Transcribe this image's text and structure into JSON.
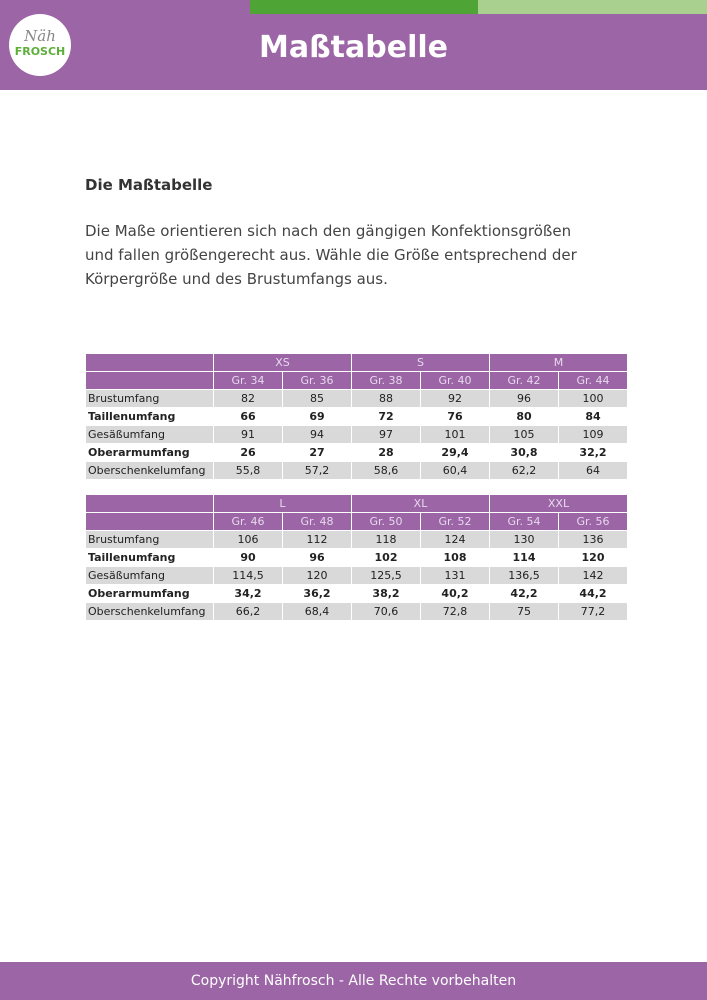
{
  "header": {
    "logo": {
      "line1": "Näh",
      "line2": "FROSCH"
    },
    "title": "Maßtabelle"
  },
  "content": {
    "heading": "Die Maßtabelle",
    "paragraph": [
      "Die Maße orientieren sich nach den gängigen Konfektionsgrößen",
      "und fallen größengerecht aus. Wähle die Größe entsprechend der",
      "Körpergröße und des Brustumfangs aus."
    ]
  },
  "tables": [
    {
      "groups": [
        "XS",
        "S",
        "M"
      ],
      "sizes": [
        "Gr. 34",
        "Gr. 36",
        "Gr. 38",
        "Gr. 40",
        "Gr. 42",
        "Gr. 44"
      ],
      "rows": [
        {
          "label": "Brustumfang",
          "values": [
            "82",
            "85",
            "88",
            "92",
            "96",
            "100"
          ]
        },
        {
          "label": "Taillenumfang",
          "values": [
            "66",
            "69",
            "72",
            "76",
            "80",
            "84"
          ]
        },
        {
          "label": "Gesäßumfang",
          "values": [
            "91",
            "94",
            "97",
            "101",
            "105",
            "109"
          ]
        },
        {
          "label": "Oberarmumfang",
          "values": [
            "26",
            "27",
            "28",
            "29,4",
            "30,8",
            "32,2"
          ]
        },
        {
          "label": "Oberschenkelumfang",
          "values": [
            "55,8",
            "57,2",
            "58,6",
            "60,4",
            "62,2",
            "64"
          ]
        }
      ]
    },
    {
      "groups": [
        "L",
        "XL",
        "XXL"
      ],
      "sizes": [
        "Gr. 46",
        "Gr. 48",
        "Gr. 50",
        "Gr. 52",
        "Gr. 54",
        "Gr. 56"
      ],
      "rows": [
        {
          "label": "Brustumfang",
          "values": [
            "106",
            "112",
            "118",
            "124",
            "130",
            "136"
          ]
        },
        {
          "label": "Taillenumfang",
          "values": [
            "90",
            "96",
            "102",
            "108",
            "114",
            "120"
          ]
        },
        {
          "label": "Gesäßumfang",
          "values": [
            "114,5",
            "120",
            "125,5",
            "131",
            "136,5",
            "142"
          ]
        },
        {
          "label": "Oberarmumfang",
          "values": [
            "34,2",
            "36,2",
            "38,2",
            "40,2",
            "42,2",
            "44,2"
          ]
        },
        {
          "label": "Oberschenkelumfang",
          "values": [
            "66,2",
            "68,4",
            "70,6",
            "72,8",
            "75",
            "77,2"
          ]
        }
      ]
    }
  ],
  "footer": {
    "text": "Copyright Nähfrosch - Alle Rechte vorbehalten"
  }
}
